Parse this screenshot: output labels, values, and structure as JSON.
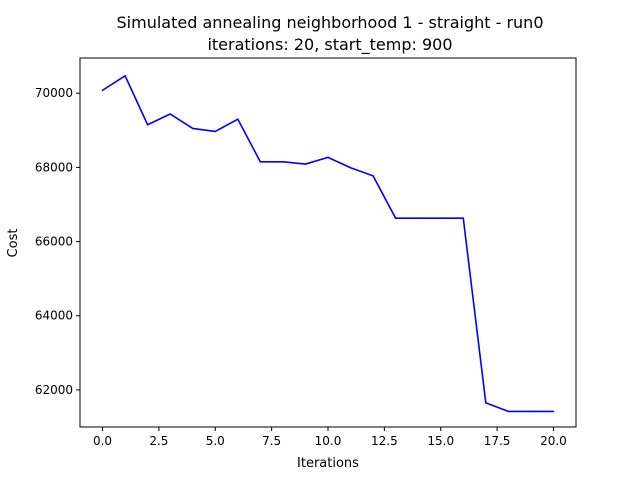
{
  "chart_data": {
    "type": "line",
    "title": "Simulated annealing neighborhood 1 - straight - run0",
    "subtitle": "iterations: 20, start_temp: 900",
    "xlabel": "Iterations",
    "ylabel": "Cost",
    "xlim": [
      -1,
      21
    ],
    "ylim": [
      61000,
      70950
    ],
    "xticks": [
      0.0,
      2.5,
      5.0,
      7.5,
      10.0,
      12.5,
      15.0,
      17.5,
      20.0
    ],
    "xtick_labels": [
      "0.0",
      "2.5",
      "5.0",
      "7.5",
      "10.0",
      "12.5",
      "15.0",
      "17.5",
      "20.0"
    ],
    "yticks": [
      62000,
      64000,
      66000,
      68000,
      70000
    ],
    "ytick_labels": [
      "62000",
      "64000",
      "66000",
      "68000",
      "70000"
    ],
    "grid": false,
    "series": [
      {
        "color": "#0000ff",
        "x": [
          0,
          1,
          2,
          3,
          4,
          5,
          6,
          7,
          8,
          9,
          10,
          11,
          12,
          13,
          14,
          15,
          16,
          17,
          18,
          19,
          20
        ],
        "values": [
          70080,
          70470,
          69150,
          69440,
          69050,
          68970,
          69300,
          68150,
          68150,
          68090,
          68270,
          67990,
          67770,
          66630,
          66630,
          66630,
          66630,
          61650,
          61420,
          61420,
          61420
        ]
      }
    ]
  }
}
